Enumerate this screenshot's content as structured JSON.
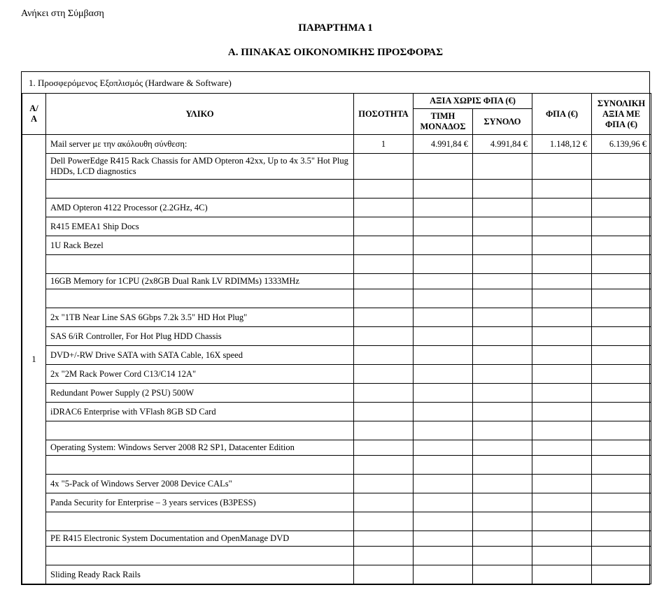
{
  "header": {
    "top_note": "Ανήκει στη Σύμβαση",
    "annex": "ΠΑΡΑΡΤΗΜΑ 1",
    "section": "Α. ΠΙΝΑΚΑΣ ΟΙΚΟΝΟΜΙΚΗΣ ΠΡΟΣΦΟΡΑΣ"
  },
  "table": {
    "caption": "1. Προσφερόμενος Εξοπλισμός (Hardware & Software)",
    "columns": {
      "aa": "Α/Α",
      "yliko": "ΥΛΙΚΟ",
      "posothta": "ΠΟΣΟΤΗΤΑ",
      "axia_xoris": "ΑΞΙΑ ΧΩΡΙΣ ΦΠΑ (€)",
      "timh_monados": "ΤΙΜΗ ΜΟΝΑΔΟΣ",
      "synolo": "ΣΥΝΟΛΟ",
      "fpa": "ΦΠΑ (€)",
      "synolikh": "ΣΥΝΟΛΙΚΗ ΑΞΙΑ ΜΕ ΦΠΑ (€)"
    },
    "priced_row": {
      "desc": "Mail server με την ακόλουθη σύνθεση:",
      "qty": "1",
      "unit": "4.991,84 €",
      "sum": "4.991,84 €",
      "vat": "1.148,12 €",
      "total": "6.139,96 €"
    },
    "aa_value": "1",
    "sections": [
      {
        "text": "Dell PowerEdge R415 Rack Chassis for AMD Opteron 42xx, Up to 4x 3.5\" Hot Plug HDDs, LCD diagnostics"
      },
      {
        "text": "AMD Opteron 4122 Processor (2.2GHz, 4C)"
      },
      {
        "text": "R415 EMEA1 Ship Docs"
      },
      {
        "text": "1U Rack Bezel"
      },
      {
        "text": "16GB Memory for 1CPU (2x8GB Dual Rank LV RDIMMs) 1333MHz"
      },
      {
        "text": "2x \"1TB Near Line SAS 6Gbps 7.2k 3.5\" HD Hot Plug\""
      },
      {
        "text": "SAS 6/iR Controller, For Hot Plug HDD Chassis"
      },
      {
        "text": "DVD+/-RW Drive SATA with SATA Cable, 16X speed"
      },
      {
        "text": "2x \"2M Rack Power Cord C13/C14 12A\""
      },
      {
        "text": "Redundant Power Supply (2 PSU) 500W"
      },
      {
        "text": "iDRAC6 Enterprise with VFlash 8GB SD Card"
      },
      {
        "text": "Operating System: Windows Server 2008 R2 SP1, Datacenter Edition"
      },
      {
        "text": "4x \"5-Pack of Windows Server 2008 Device CALs\""
      },
      {
        "text": "Panda Security for Enterprise – 3 years services (B3PESS)"
      },
      {
        "text": "PE R415 Electronic System Documentation and OpenManage DVD"
      },
      {
        "text": "Sliding Ready Rack Rails"
      }
    ],
    "spaced_after": [
      0,
      3,
      4,
      10,
      11,
      13,
      14
    ]
  },
  "style": {
    "background": "#ffffff",
    "text_color": "#000000",
    "border_color": "#000000",
    "font_family": "Times New Roman",
    "base_fontsize_pt": 10,
    "title_fontsize_pt": 11
  }
}
